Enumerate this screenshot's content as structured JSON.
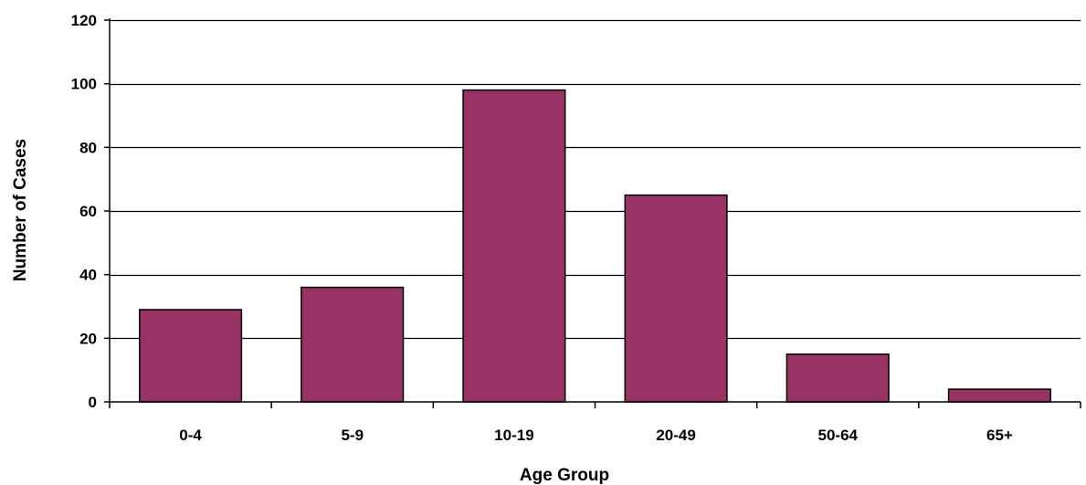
{
  "chart_data": {
    "type": "bar",
    "title": "",
    "xlabel": "Age Group",
    "ylabel": "Number of Cases",
    "categories": [
      "0-4",
      "5-9",
      "10-19",
      "20-49",
      "50-64",
      "65+"
    ],
    "values": [
      29,
      36,
      98,
      65,
      15,
      4
    ],
    "ylim": [
      0,
      120
    ],
    "yticks": [
      0,
      20,
      40,
      60,
      80,
      100,
      120
    ],
    "grid": true,
    "legend": "none",
    "bar_color": "#993366"
  }
}
